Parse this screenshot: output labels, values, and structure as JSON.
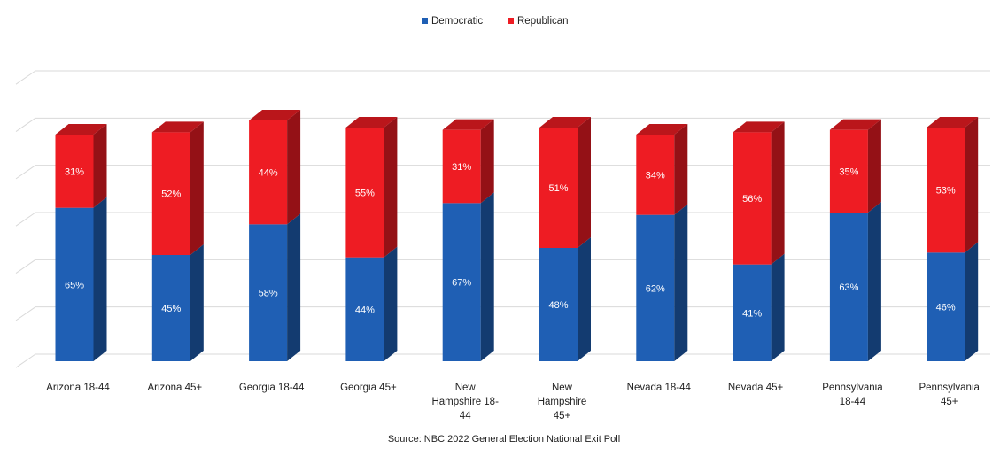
{
  "chart_data": {
    "type": "bar",
    "stacked": true,
    "style": "3d-stacked-column",
    "categories": [
      [
        "Arizona 18-44"
      ],
      [
        "Arizona 45+"
      ],
      [
        "Georgia 18-44"
      ],
      [
        "Georgia 45+"
      ],
      [
        "New",
        "Hampshire 18-",
        "44"
      ],
      [
        "New",
        "Hampshire",
        "45+"
      ],
      [
        "Nevada 18-44"
      ],
      [
        "Nevada 45+"
      ],
      [
        "Pennsylvania",
        "18-44"
      ],
      [
        "Pennsylvania",
        "45+"
      ]
    ],
    "series": [
      {
        "name": "Democratic",
        "color": "#1f5fb4",
        "values": [
          65,
          45,
          58,
          44,
          67,
          48,
          62,
          41,
          63,
          46
        ],
        "labels": [
          "65%",
          "45%",
          "58%",
          "44%",
          "67%",
          "48%",
          "62%",
          "41%",
          "63%",
          "46%"
        ]
      },
      {
        "name": "Republican",
        "color": "#ee1c23",
        "values": [
          31,
          52,
          44,
          55,
          31,
          51,
          34,
          56,
          35,
          53
        ],
        "labels": [
          "31%",
          "52%",
          "44%",
          "55%",
          "31%",
          "51%",
          "34%",
          "56%",
          "35%",
          "53%"
        ]
      }
    ],
    "ylim": [
      0,
      120
    ],
    "grid": true,
    "legend": "top-center",
    "xlabel": "",
    "ylabel": "",
    "source": "Source: NBC 2022 General Election National Exit Poll"
  }
}
